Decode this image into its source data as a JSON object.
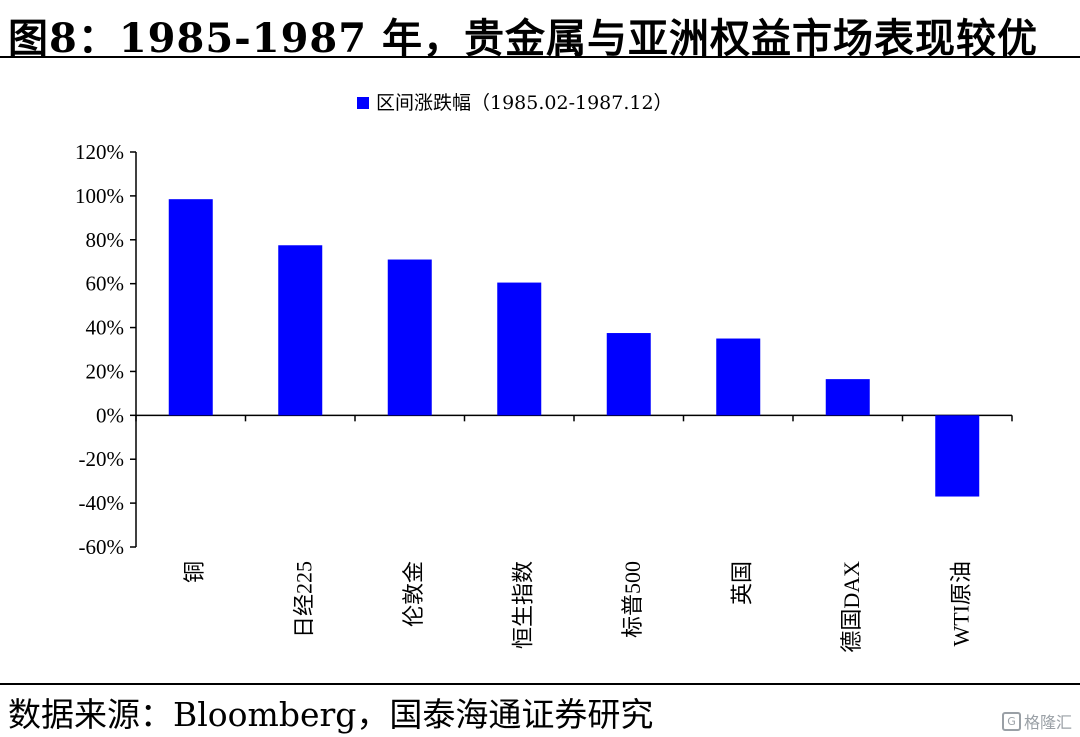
{
  "header": {
    "title": "图8：1985-1987 年，贵金属与亚洲权益市场表现较优"
  },
  "footer": {
    "source": "数据来源：Bloomberg，国泰海通证券研究",
    "watermark": "格隆汇",
    "watermark_icon": "g-logo-icon"
  },
  "colors": {
    "bar": "#0000ff",
    "axis": "#000000"
  },
  "chart_data": {
    "type": "bar",
    "title": "",
    "xlabel": "",
    "ylabel": "",
    "ylim": [
      -0.6,
      1.2
    ],
    "ytick_values": [
      1.2,
      1.0,
      0.8,
      0.6,
      0.4,
      0.2,
      0.0,
      -0.2,
      -0.4,
      -0.6
    ],
    "ytick_labels": [
      "120%",
      "100%",
      "80%",
      "60%",
      "40%",
      "20%",
      "0%",
      "-20%",
      "-40%",
      "-60%"
    ],
    "categories": [
      "铜",
      "日经225",
      "伦敦金",
      "恒生指数",
      "标普500",
      "英国",
      "德国DAX",
      "WTI原油"
    ],
    "series": [
      {
        "name": "区间涨跌幅（1985.02-1987.12）",
        "values": [
          0.985,
          0.775,
          0.71,
          0.605,
          0.375,
          0.35,
          0.165,
          -0.37
        ]
      }
    ],
    "legend_position": "top-center",
    "grid": false
  }
}
